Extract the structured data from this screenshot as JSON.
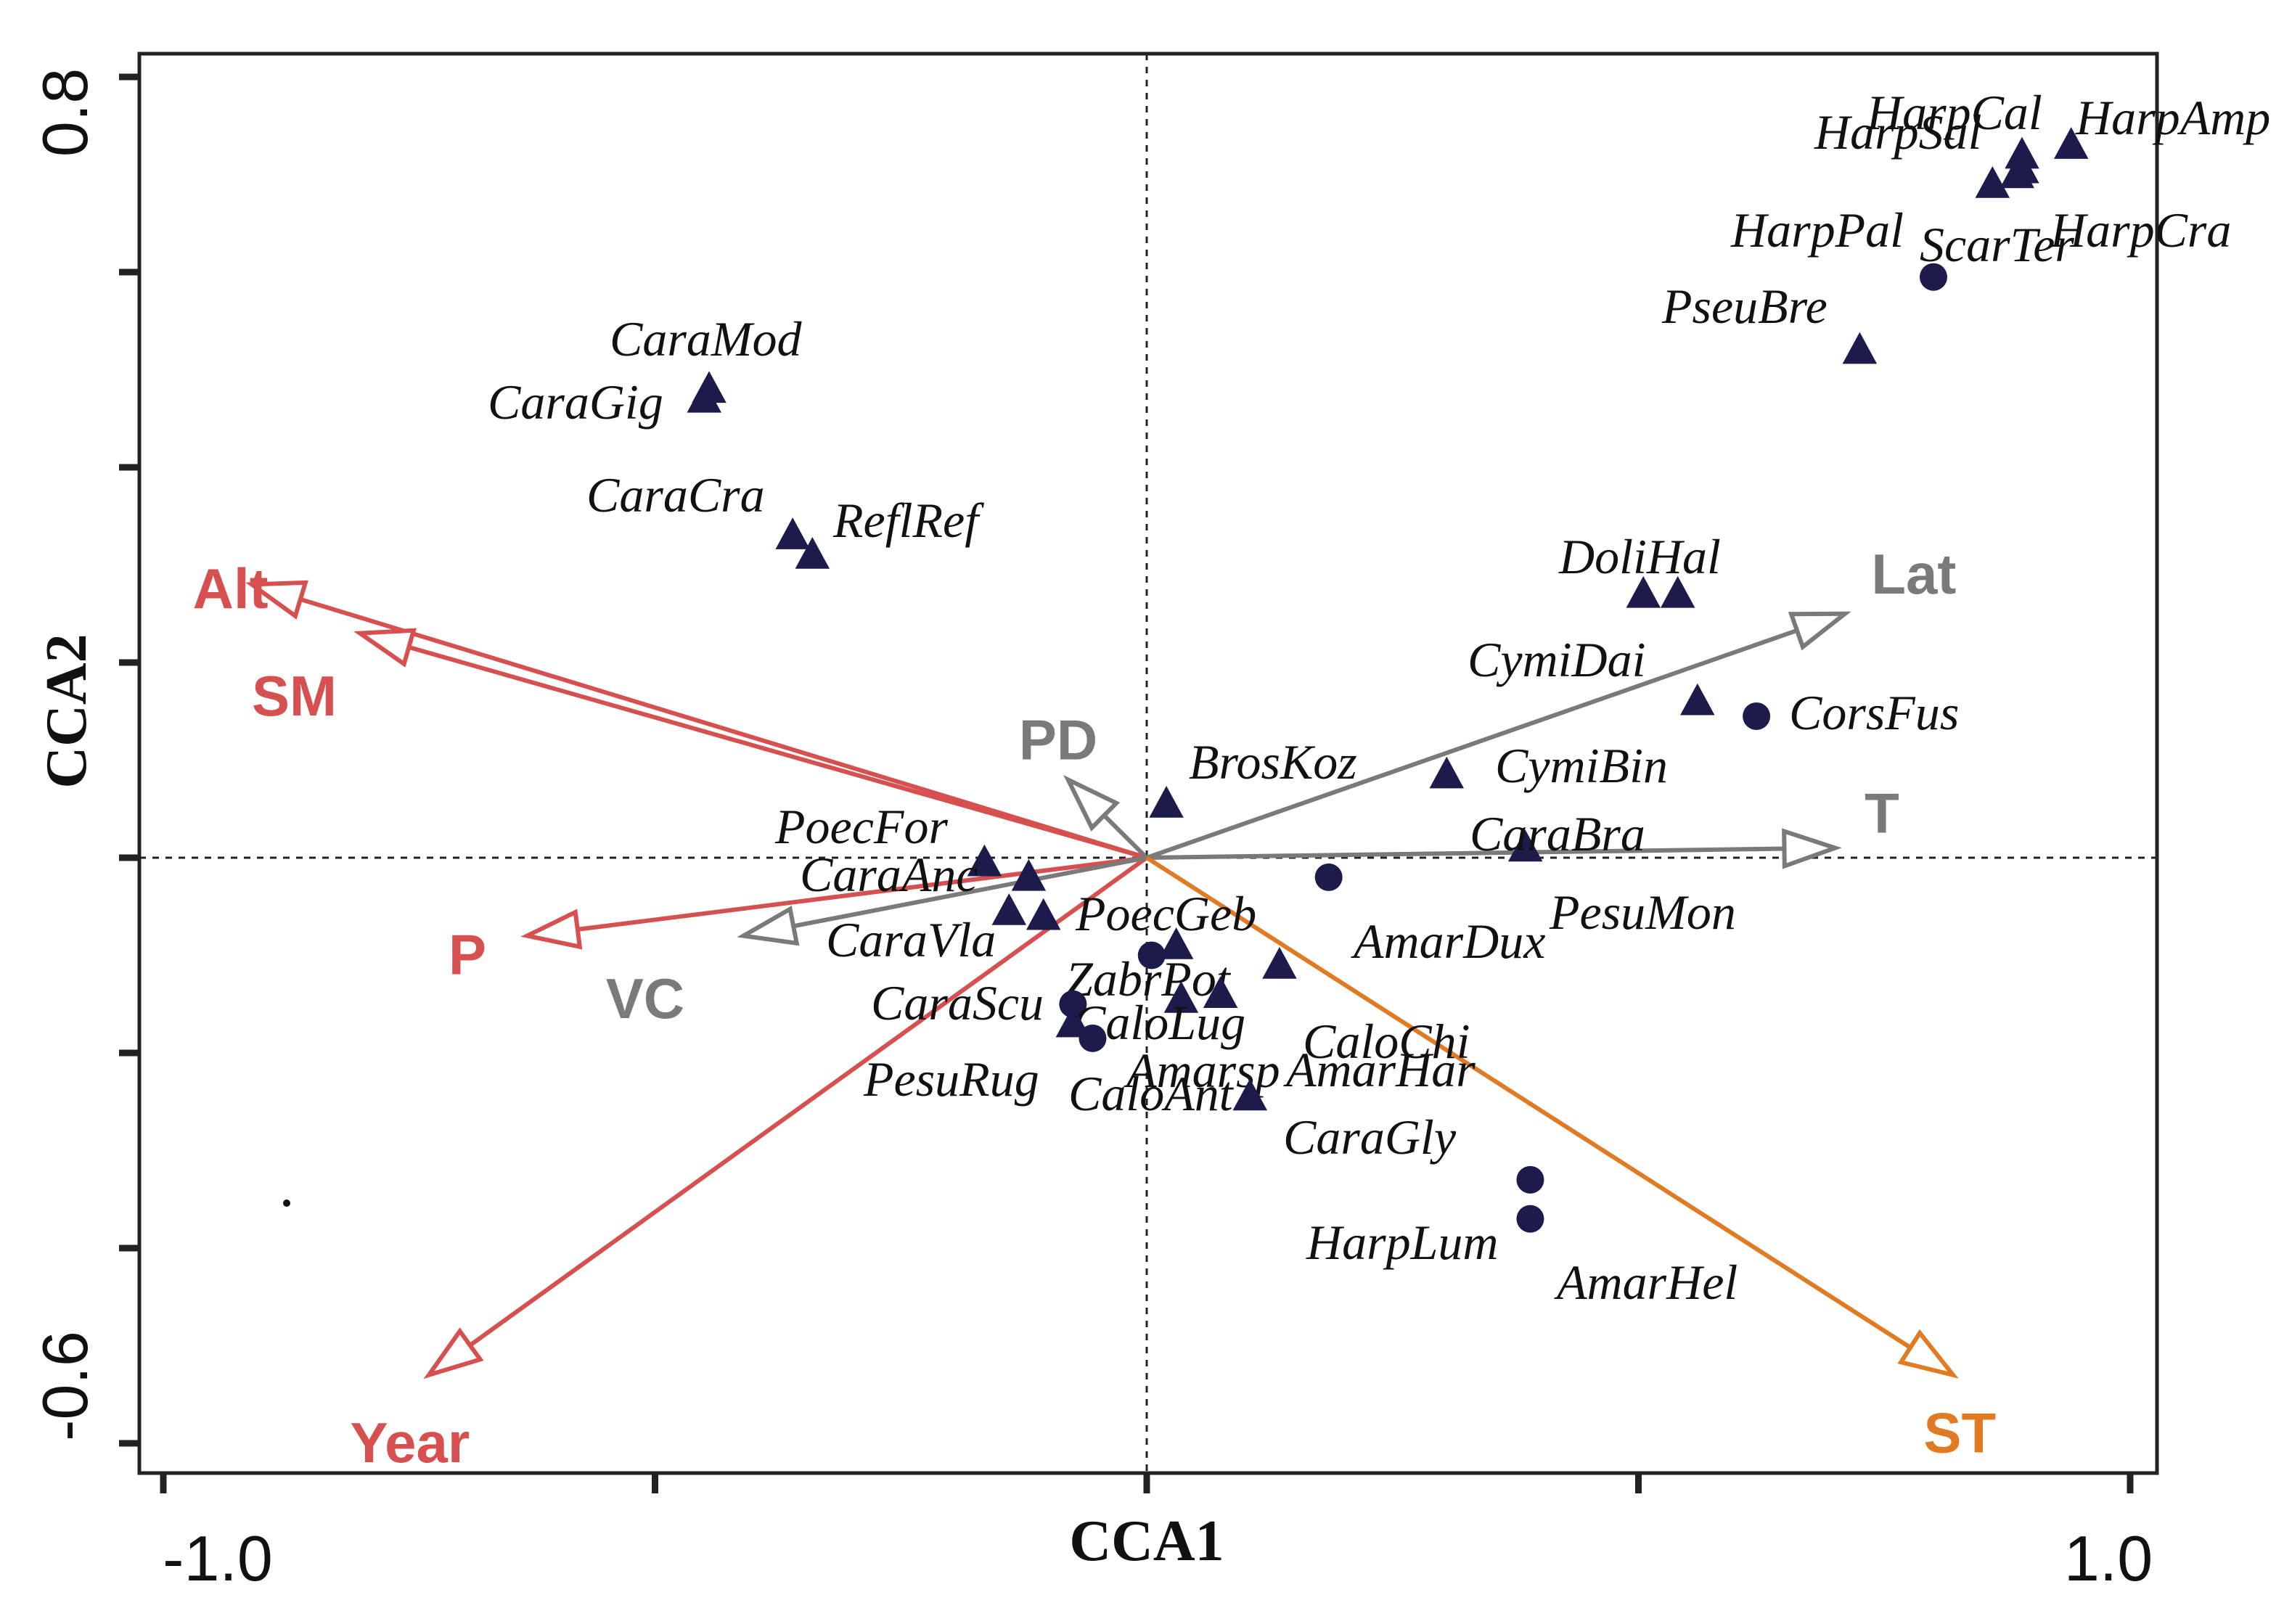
{
  "chart_data": {
    "type": "scatter",
    "subtype": "CCA biplot",
    "xlabel": "CCA1",
    "ylabel": "CCA2",
    "xlim": [
      -1.0,
      1.0
    ],
    "ylim": [
      -0.6,
      0.8
    ],
    "x_tick_labels": [
      "-1.0",
      "1.0"
    ],
    "y_tick_labels": [
      "0.8",
      "-0.6"
    ],
    "x_tick_values": [
      -1.0,
      -0.5,
      0.0,
      0.5,
      1.0
    ],
    "y_tick_values": [
      0.8,
      0.6,
      0.4,
      0.2,
      0.0,
      -0.2,
      -0.4,
      -0.6
    ],
    "colors": {
      "climate_vectors": "#d65050",
      "site_vectors": "#7a7a7a",
      "soil_vector": "#e07b24",
      "species_marker": "#1d1b4b",
      "text": "#111111"
    },
    "vectors": [
      {
        "name": "Alt",
        "group": "climate",
        "x": -0.91,
        "y": 0.28
      },
      {
        "name": "SM",
        "group": "climate",
        "x": -0.8,
        "y": 0.23
      },
      {
        "name": "P",
        "group": "climate",
        "x": -0.63,
        "y": -0.08
      },
      {
        "name": "Year",
        "group": "climate",
        "x": -0.73,
        "y": -0.53
      },
      {
        "name": "VC",
        "group": "site",
        "x": -0.41,
        "y": -0.08
      },
      {
        "name": "PD",
        "group": "site",
        "x": -0.08,
        "y": 0.08
      },
      {
        "name": "Lat",
        "group": "site",
        "x": 0.71,
        "y": 0.25
      },
      {
        "name": "T",
        "group": "site",
        "x": 0.7,
        "y": 0.01
      },
      {
        "name": "ST",
        "group": "soil",
        "x": 0.82,
        "y": -0.53
      }
    ],
    "species": [
      {
        "name": "HarpCal",
        "x": 0.89,
        "y": 0.72,
        "marker": "triangle"
      },
      {
        "name": "HarpAmp",
        "x": 0.94,
        "y": 0.73,
        "marker": "triangle"
      },
      {
        "name": "HarpSal",
        "x": 0.86,
        "y": 0.69,
        "marker": "triangle"
      },
      {
        "name": "",
        "x": 0.89,
        "y": 0.705,
        "marker": "triangle"
      },
      {
        "name": "",
        "x": 0.885,
        "y": 0.7,
        "marker": "triangle"
      },
      {
        "name": "HarpPal",
        "x": null,
        "y": null,
        "marker": "none"
      },
      {
        "name": "HarpCra",
        "x": null,
        "y": null,
        "marker": "none"
      },
      {
        "name": "ScarTer",
        "x": 0.8,
        "y": 0.595,
        "marker": "circle"
      },
      {
        "name": "PseuBre",
        "x": 0.725,
        "y": 0.52,
        "marker": "triangle"
      },
      {
        "name": "CaraMod",
        "x": -0.445,
        "y": 0.48,
        "marker": "triangle"
      },
      {
        "name": "CaraGig",
        "x": -0.45,
        "y": 0.47,
        "marker": "triangle"
      },
      {
        "name": "CaraCra",
        "x": -0.36,
        "y": 0.33,
        "marker": "triangle"
      },
      {
        "name": "ReflRef",
        "x": -0.34,
        "y": 0.31,
        "marker": "triangle"
      },
      {
        "name": "DoliHal",
        "x": 0.505,
        "y": 0.27,
        "marker": "triangle"
      },
      {
        "name": "",
        "x": 0.54,
        "y": 0.27,
        "marker": "triangle"
      },
      {
        "name": "CymiDai",
        "x": 0.56,
        "y": 0.16,
        "marker": "triangle"
      },
      {
        "name": "CorsFus",
        "x": 0.62,
        "y": 0.145,
        "marker": "circle"
      },
      {
        "name": "CymiBin",
        "x": 0.305,
        "y": 0.085,
        "marker": "triangle"
      },
      {
        "name": "BrosKoz",
        "x": 0.02,
        "y": 0.055,
        "marker": "triangle"
      },
      {
        "name": "CaraBra",
        "x": 0.385,
        "y": 0.01,
        "marker": "triangle"
      },
      {
        "name": "PesuMon",
        "x": 0.185,
        "y": -0.02,
        "marker": "circle"
      },
      {
        "name": "PoecFor",
        "x": -0.165,
        "y": -0.005,
        "marker": "triangle"
      },
      {
        "name": "CaraAnc",
        "x": -0.12,
        "y": -0.02,
        "marker": "triangle"
      },
      {
        "name": "CaraVla",
        "x": -0.14,
        "y": -0.055,
        "marker": "triangle"
      },
      {
        "name": "",
        "x": -0.105,
        "y": -0.06,
        "marker": "triangle"
      },
      {
        "name": "PoecGeb",
        "x": 0.03,
        "y": -0.09,
        "marker": "triangle"
      },
      {
        "name": "AmarDux",
        "x": 0.135,
        "y": -0.11,
        "marker": "triangle"
      },
      {
        "name": "ZabrPot",
        "x": 0.005,
        "y": -0.1,
        "marker": "circle"
      },
      {
        "name": "CaraScu",
        "x": -0.075,
        "y": -0.15,
        "marker": "circle"
      },
      {
        "name": "CaloLug",
        "x": 0.035,
        "y": -0.145,
        "marker": "triangle"
      },
      {
        "name": "",
        "x": 0.075,
        "y": -0.14,
        "marker": "triangle"
      },
      {
        "name": "CaloChi",
        "x": null,
        "y": null,
        "marker": "none"
      },
      {
        "name": "PesuRug",
        "x": -0.075,
        "y": -0.17,
        "marker": "triangle"
      },
      {
        "name": "Amarsp",
        "x": -0.055,
        "y": -0.185,
        "marker": "circle"
      },
      {
        "name": "CaloAnt",
        "x": null,
        "y": null,
        "marker": "none"
      },
      {
        "name": "AmarHar",
        "x": null,
        "y": null,
        "marker": "none"
      },
      {
        "name": "CaraGly",
        "x": 0.105,
        "y": -0.245,
        "marker": "triangle"
      },
      {
        "name": "HarpLum",
        "x": 0.39,
        "y": -0.33,
        "marker": "circle"
      },
      {
        "name": "AmarHel",
        "x": 0.39,
        "y": -0.37,
        "marker": "circle"
      }
    ]
  }
}
